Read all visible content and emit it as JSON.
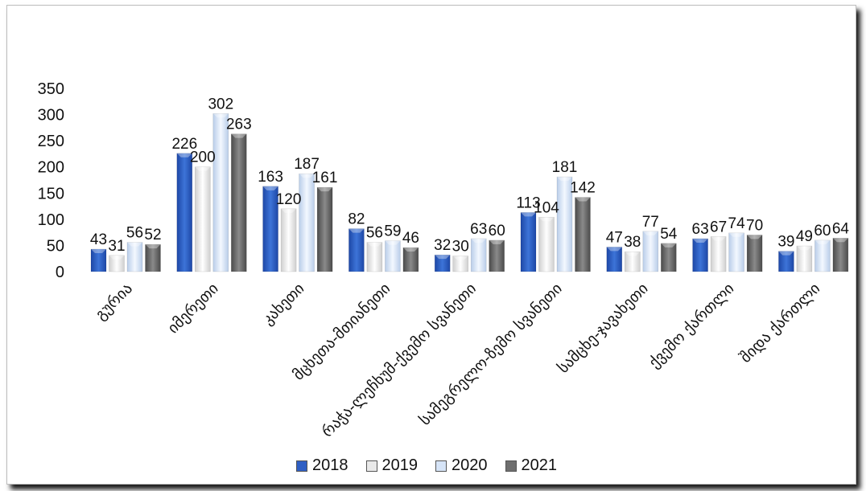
{
  "chart_data": {
    "type": "bar",
    "title": "",
    "xlabel": "",
    "ylabel": "",
    "ylim": [
      0,
      350
    ],
    "yticks": [
      0,
      50,
      100,
      150,
      200,
      250,
      300,
      350
    ],
    "grid": false,
    "legend_position": "bottom",
    "categories": [
      "გურია",
      "იმერეთი",
      "კახეთი",
      "მცხეთა-მთიანეთი",
      "რაჭა-ლეჩხუმ-ქვემო სვანეთი",
      "სამეგრელო-ზემო სვანეთი",
      "სამცხე-ჯავახეთი",
      "ქვემო ქართლი",
      "შიდა ქართლი"
    ],
    "series": [
      {
        "name": "2018",
        "color": "#2f5fc4",
        "values": [
          43,
          226,
          163,
          82,
          32,
          113,
          47,
          63,
          39
        ]
      },
      {
        "name": "2019",
        "color": "#e9e9e9",
        "values": [
          31,
          200,
          120,
          56,
          30,
          104,
          38,
          67,
          49
        ]
      },
      {
        "name": "2020",
        "color": "#d6e4f7",
        "values": [
          56,
          302,
          187,
          59,
          63,
          181,
          77,
          74,
          60
        ]
      },
      {
        "name": "2021",
        "color": "#6e6e6e",
        "values": [
          52,
          263,
          161,
          46,
          60,
          142,
          54,
          70,
          64
        ]
      }
    ],
    "data_labels": [
      [
        "43",
        "31",
        "56",
        "52"
      ],
      [
        "226",
        "200",
        "302",
        "263"
      ],
      [
        "163",
        "120",
        "187",
        "161"
      ],
      [
        "82",
        "56",
        "59",
        "46"
      ],
      [
        "32",
        "30",
        "63",
        "60"
      ],
      [
        "113",
        "104",
        "181",
        "142"
      ],
      [
        "47",
        "38",
        "77",
        "54"
      ],
      [
        "63",
        "67",
        "74",
        "70"
      ],
      [
        "39",
        "49",
        "60",
        "64"
      ]
    ]
  }
}
